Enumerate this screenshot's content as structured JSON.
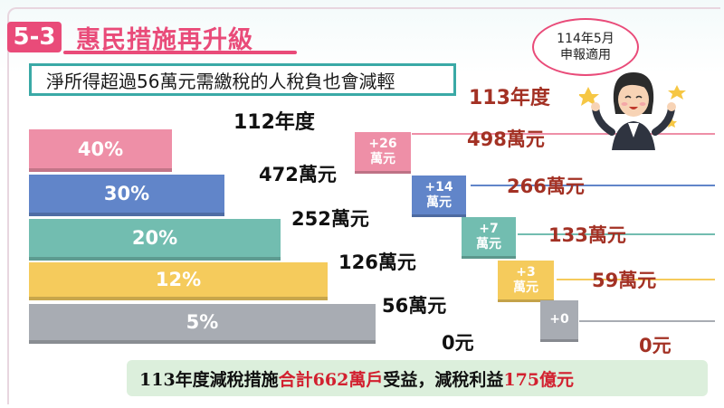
{
  "section": {
    "number": "5-3",
    "title": "惠民措施再升級"
  },
  "subtitle": "淨所得超過56萬元需繳稅的人稅負也會減輕",
  "year_left": "112年度",
  "year_right": "113年度",
  "bubble": {
    "line1": "114年5月",
    "line2": "申報適用"
  },
  "brackets": [
    {
      "rate": "40%",
      "threshold_112": "472萬元",
      "delta_top": "+26",
      "delta_bottom": "萬元",
      "threshold_113": "498萬元",
      "color": "#ee8fa7"
    },
    {
      "rate": "30%",
      "threshold_112": "252萬元",
      "delta_top": "+14",
      "delta_bottom": "萬元",
      "threshold_113": "266萬元",
      "color": "#6185c9"
    },
    {
      "rate": "20%",
      "threshold_112": "126萬元",
      "delta_top": "+7",
      "delta_bottom": "萬元",
      "threshold_113": "133萬元",
      "color": "#72bdb0"
    },
    {
      "rate": "12%",
      "threshold_112": "56萬元",
      "delta_top": "+3",
      "delta_bottom": "萬元",
      "threshold_113": "59萬元",
      "color": "#f5cb5c"
    },
    {
      "rate": "5%",
      "threshold_112": "0元",
      "delta_top": "+0",
      "delta_bottom": "",
      "threshold_113": "0元",
      "color": "#a8acb3"
    }
  ],
  "footer": {
    "part1": "113年度減稅措施",
    "part2": "合計662萬戶",
    "part3": "受益，減稅利益",
    "part4": "175億元"
  }
}
